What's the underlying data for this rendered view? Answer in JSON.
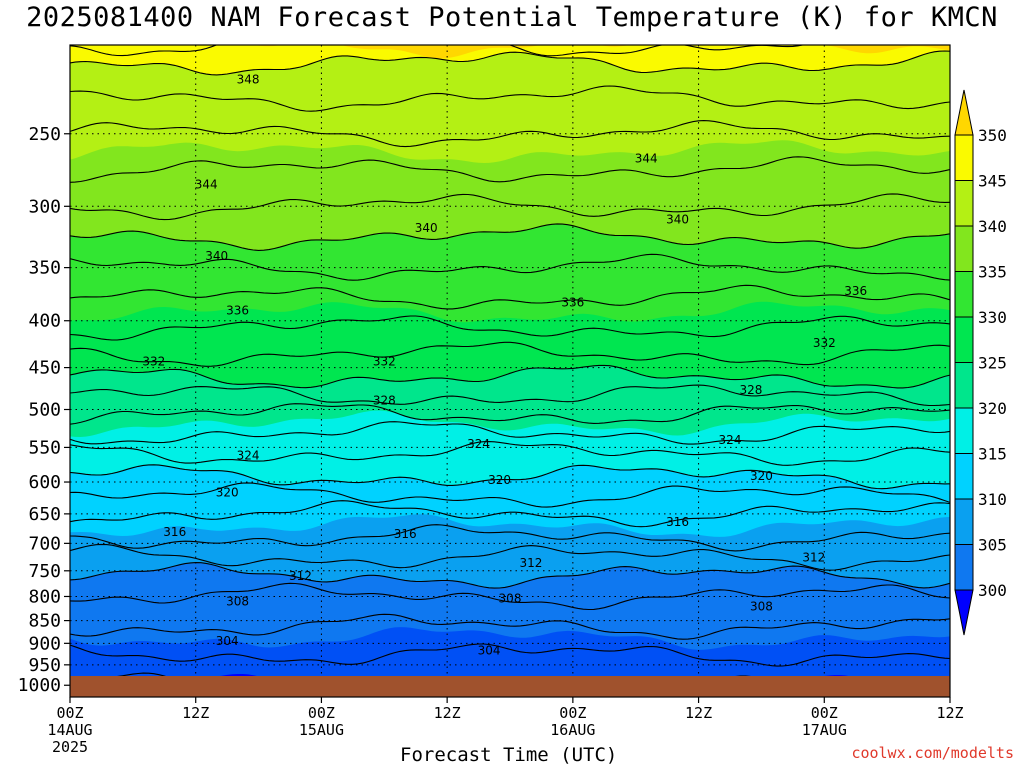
{
  "title": "2025081400 NAM Forecast Potential Temperature (K) for KMCN",
  "watermark": "coolwx.com/modelts",
  "colors": {
    "levels": [
      "#0000ff",
      "#0050f5",
      "#0f78f0",
      "#0aa0f0",
      "#00d2ff",
      "#00f0e6",
      "#00e68c",
      "#00e650",
      "#32e632",
      "#82e61e",
      "#b4f014",
      "#fafa00",
      "#ffd700"
    ],
    "ground": "#a0522d",
    "contour": "#000000",
    "grid": "#000000"
  },
  "chart_data": {
    "type": "heatmap",
    "title": "2025081400 NAM Forecast Potential Temperature (K) for KMCN",
    "xlabel": "Forecast Time (UTC)",
    "ylabel": "",
    "x_ticks": [
      {
        "hour": 0,
        "top": "00Z",
        "mid": "14AUG",
        "bottom": "2025"
      },
      {
        "hour": 12,
        "top": "12Z",
        "mid": "",
        "bottom": ""
      },
      {
        "hour": 24,
        "top": "00Z",
        "mid": "15AUG",
        "bottom": ""
      },
      {
        "hour": 36,
        "top": "12Z",
        "mid": "",
        "bottom": ""
      },
      {
        "hour": 48,
        "top": "00Z",
        "mid": "16AUG",
        "bottom": ""
      },
      {
        "hour": 60,
        "top": "12Z",
        "mid": "",
        "bottom": ""
      },
      {
        "hour": 72,
        "top": "00Z",
        "mid": "17AUG",
        "bottom": ""
      },
      {
        "hour": 84,
        "top": "12Z",
        "mid": "",
        "bottom": ""
      }
    ],
    "xlim_hours": [
      0,
      84
    ],
    "y_ticks": [
      250,
      300,
      350,
      400,
      450,
      500,
      550,
      600,
      650,
      700,
      750,
      800,
      850,
      900,
      950,
      1000
    ],
    "ylim_hpa": [
      1030,
      200
    ],
    "y_scale": "log",
    "colorbar_ticks": [
      "300",
      "305",
      "310",
      "315",
      "320",
      "325",
      "330",
      "335",
      "340",
      "345",
      "350"
    ],
    "colorbar_range": [
      300,
      350
    ],
    "colorbar_step": 5,
    "profile": [
      {
        "p": 1000,
        "theta": 302
      },
      {
        "p": 950,
        "theta": 303.5
      },
      {
        "p": 900,
        "theta": 304.5
      },
      {
        "p": 850,
        "theta": 306.5
      },
      {
        "p": 800,
        "theta": 308
      },
      {
        "p": 750,
        "theta": 310.5
      },
      {
        "p": 700,
        "theta": 313.5
      },
      {
        "p": 650,
        "theta": 316
      },
      {
        "p": 600,
        "theta": 319.5
      },
      {
        "p": 550,
        "theta": 322.5
      },
      {
        "p": 500,
        "theta": 326.5
      },
      {
        "p": 450,
        "theta": 331
      },
      {
        "p": 400,
        "theta": 334.5
      },
      {
        "p": 350,
        "theta": 338
      },
      {
        "p": 300,
        "theta": 342
      },
      {
        "p": 250,
        "theta": 346
      },
      {
        "p": 200,
        "theta": 351
      }
    ],
    "contour_labels": [
      {
        "text": "348",
        "hour": 17,
        "p": 218
      },
      {
        "text": "344",
        "hour": 13,
        "p": 284
      },
      {
        "text": "344",
        "hour": 55,
        "p": 266
      },
      {
        "text": "340",
        "hour": 14,
        "p": 340
      },
      {
        "text": "340",
        "hour": 34,
        "p": 317
      },
      {
        "text": "340",
        "hour": 58,
        "p": 310
      },
      {
        "text": "336",
        "hour": 16,
        "p": 390
      },
      {
        "text": "336",
        "hour": 48,
        "p": 382
      },
      {
        "text": "336",
        "hour": 75,
        "p": 371
      },
      {
        "text": "332",
        "hour": 8,
        "p": 443
      },
      {
        "text": "332",
        "hour": 30,
        "p": 443
      },
      {
        "text": "332",
        "hour": 72,
        "p": 423
      },
      {
        "text": "328",
        "hour": 30,
        "p": 489
      },
      {
        "text": "328",
        "hour": 65,
        "p": 476
      },
      {
        "text": "324",
        "hour": 17,
        "p": 561
      },
      {
        "text": "324",
        "hour": 39,
        "p": 545
      },
      {
        "text": "324",
        "hour": 63,
        "p": 540
      },
      {
        "text": "320",
        "hour": 15,
        "p": 616
      },
      {
        "text": "320",
        "hour": 41,
        "p": 597
      },
      {
        "text": "320",
        "hour": 66,
        "p": 591
      },
      {
        "text": "316",
        "hour": 10,
        "p": 680
      },
      {
        "text": "316",
        "hour": 32,
        "p": 684
      },
      {
        "text": "316",
        "hour": 58,
        "p": 663
      },
      {
        "text": "312",
        "hour": 22,
        "p": 760
      },
      {
        "text": "312",
        "hour": 44,
        "p": 735
      },
      {
        "text": "312",
        "hour": 71,
        "p": 725
      },
      {
        "text": "308",
        "hour": 16,
        "p": 810
      },
      {
        "text": "308",
        "hour": 42,
        "p": 804
      },
      {
        "text": "308",
        "hour": 66,
        "p": 820
      },
      {
        "text": "304",
        "hour": 15,
        "p": 895
      },
      {
        "text": "304",
        "hour": 40,
        "p": 916
      }
    ]
  }
}
